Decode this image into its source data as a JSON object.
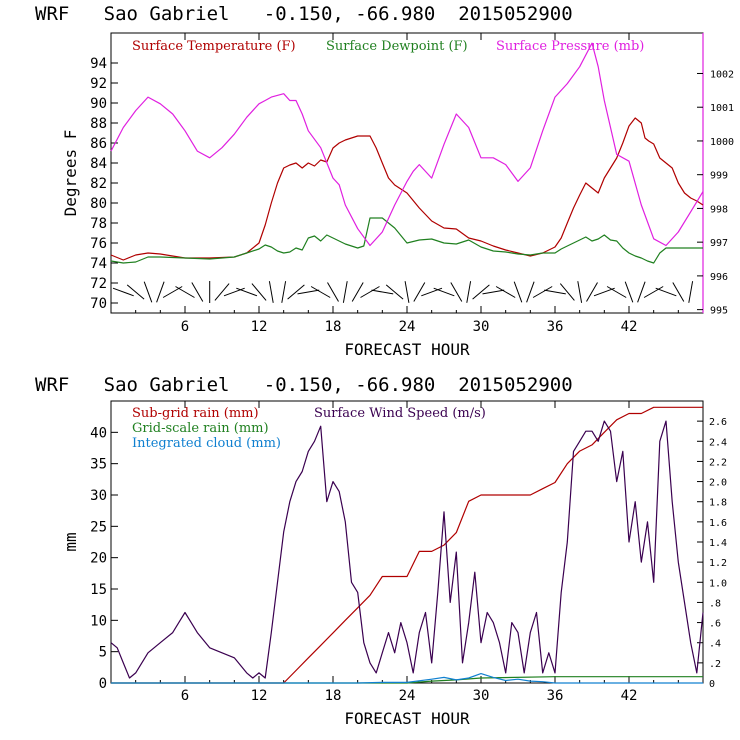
{
  "chart_data": [
    {
      "type": "line",
      "title": "WRF   Sao Gabriel   -0.150, -66.980  2015052900",
      "xlabel": "FORECAST HOUR",
      "ylabel": "Degrees F",
      "xlim": [
        0,
        48
      ],
      "ylim": [
        69,
        97
      ],
      "y2lim": [
        994.9,
        1003.2
      ],
      "x_ticks": [
        6,
        12,
        18,
        24,
        30,
        36,
        42
      ],
      "y_ticks": [
        70,
        72,
        74,
        76,
        78,
        80,
        82,
        84,
        86,
        88,
        90,
        92,
        94
      ],
      "y2_ticks": [
        995,
        996,
        997,
        998,
        999,
        1000,
        1001,
        1002
      ],
      "legend": [
        {
          "label": "Surface Temperature (F)",
          "color": "#b00000"
        },
        {
          "label": "Surface Dewpoint (F)",
          "color": "#208020"
        },
        {
          "label": "Surface Pressure (mb)",
          "color": "#e020e0"
        }
      ],
      "series": [
        {
          "name": "Surface Temperature (F)",
          "color": "#b00000",
          "axis": "left",
          "x": [
            0,
            1,
            2,
            3,
            4,
            6,
            8,
            10,
            11,
            12,
            12.5,
            13,
            13.5,
            14,
            14.5,
            15,
            15.5,
            16,
            16.5,
            17,
            17.5,
            18,
            18.5,
            19,
            20,
            21,
            21.5,
            22,
            22.5,
            23,
            24,
            25,
            26,
            27,
            28,
            29,
            30,
            31,
            32,
            33,
            34,
            35,
            36,
            36.5,
            37,
            37.5,
            38,
            38.5,
            39,
            39.5,
            40,
            40.5,
            41,
            41.5,
            42,
            42.5,
            43,
            43.3,
            43.6,
            44,
            44.5,
            45,
            45.5,
            46,
            46.5,
            47,
            47.5,
            48
          ],
          "y": [
            74.8,
            74.3,
            74.8,
            75,
            74.9,
            74.5,
            74.5,
            74.6,
            75,
            76,
            77.8,
            80,
            82,
            83.5,
            83.8,
            84,
            83.5,
            84,
            83.7,
            84.3,
            84.1,
            85.5,
            86,
            86.3,
            86.7,
            86.7,
            85.5,
            84,
            82.5,
            81.8,
            81,
            79.5,
            78.2,
            77.5,
            77.4,
            76.5,
            76.2,
            75.7,
            75.3,
            75,
            74.7,
            75,
            75.6,
            76.5,
            78,
            79.5,
            80.8,
            82,
            81.5,
            81,
            82.5,
            83.5,
            84.5,
            86,
            87.7,
            88.5,
            88,
            86.5,
            86.2,
            85.9,
            84.5,
            84,
            83.5,
            82,
            81,
            80.5,
            80.2,
            79.8
          ]
        },
        {
          "name": "Surface Dewpoint (F)",
          "color": "#208020",
          "axis": "left",
          "x": [
            0,
            1,
            2,
            3,
            4,
            6,
            8,
            10,
            11,
            12,
            12.5,
            13,
            13.5,
            14,
            14.5,
            15,
            15.5,
            16,
            16.5,
            17,
            17.5,
            18,
            19,
            20,
            20.5,
            21,
            22,
            23,
            24,
            25,
            26,
            27,
            28,
            29,
            30,
            31,
            32,
            33,
            34,
            35,
            36,
            36.5,
            37,
            37.5,
            38,
            38.5,
            39,
            39.5,
            40,
            40.5,
            41,
            41.5,
            42,
            42.5,
            43,
            43.5,
            44,
            44.5,
            45,
            45.5,
            46,
            47,
            48
          ],
          "y": [
            74.2,
            74,
            74.1,
            74.6,
            74.6,
            74.5,
            74.4,
            74.6,
            75,
            75.4,
            75.8,
            75.6,
            75.2,
            75,
            75.1,
            75.5,
            75.3,
            76.5,
            76.7,
            76.2,
            76.8,
            76.5,
            75.9,
            75.5,
            75.7,
            78.5,
            78.5,
            77.5,
            76,
            76.3,
            76.4,
            76,
            75.9,
            76.3,
            75.6,
            75.2,
            75.1,
            74.9,
            74.8,
            75,
            75,
            75.4,
            75.7,
            76,
            76.3,
            76.6,
            76.2,
            76.4,
            76.8,
            76.3,
            76.2,
            75.5,
            75,
            74.7,
            74.5,
            74.2,
            74,
            75,
            75.5,
            75.5,
            75.5,
            75.5,
            75.5
          ]
        },
        {
          "name": "Surface Pressure (mb)",
          "color": "#e020e0",
          "axis": "right",
          "x": [
            0,
            1,
            2,
            3,
            4,
            5,
            6,
            7,
            8,
            9,
            10,
            11,
            12,
            12.5,
            13,
            14,
            14.5,
            15,
            15.5,
            16,
            17,
            18,
            18.5,
            19,
            20,
            21,
            22,
            23,
            24,
            24.5,
            25,
            26,
            27,
            28,
            29,
            30,
            31,
            32,
            33,
            34,
            35,
            36,
            37,
            38,
            39,
            39.5,
            40,
            41,
            42,
            43,
            44,
            45,
            46,
            47,
            48
          ],
          "y": [
            999.7,
            1000.4,
            1000.9,
            1001.3,
            1001.1,
            1000.8,
            1000.3,
            999.7,
            999.5,
            999.8,
            1000.2,
            1000.7,
            1001.1,
            1001.2,
            1001.3,
            1001.4,
            1001.2,
            1001.2,
            1000.8,
            1000.3,
            999.8,
            998.9,
            998.7,
            998.1,
            997.4,
            996.9,
            997.3,
            998.1,
            998.8,
            999.1,
            999.3,
            998.9,
            999.9,
            1000.8,
            1000.4,
            999.5,
            999.5,
            999.3,
            998.8,
            999.2,
            1000.3,
            1001.3,
            1001.7,
            1002.2,
            1002.9,
            1002.2,
            1001.2,
            999.6,
            999.4,
            998.1,
            997.1,
            996.9,
            997.3,
            997.9,
            998.5
          ]
        }
      ],
      "wind_barb_row_y": 71.1,
      "wind_barb_hours": [
        1,
        2,
        3,
        4,
        5,
        6,
        7,
        8,
        9,
        10,
        11,
        12,
        13,
        14,
        15,
        16,
        17,
        18,
        19,
        20,
        21,
        22,
        23,
        24,
        25,
        26,
        27,
        28,
        29,
        30,
        31,
        32,
        33,
        34,
        35,
        36,
        37,
        38,
        39,
        40,
        41,
        42,
        43,
        44,
        45,
        46,
        47
      ],
      "wind_barb_directions_deg": [
        20,
        40,
        70,
        110,
        150,
        30,
        60,
        90,
        130,
        160,
        20,
        50,
        80,
        100,
        140,
        170,
        30,
        60,
        100,
        120,
        150,
        10,
        40,
        80,
        120,
        160,
        20,
        60,
        100,
        140,
        170,
        30,
        70,
        110,
        150,
        10,
        50,
        80,
        120,
        160,
        30,
        70,
        110,
        150,
        20,
        60,
        100
      ]
    },
    {
      "type": "line",
      "title": "WRF   Sao Gabriel   -0.150, -66.980  2015052900",
      "xlabel": "FORECAST HOUR",
      "ylabel": "mm",
      "xlim": [
        0,
        48
      ],
      "ylim": [
        0,
        45
      ],
      "y2lim": [
        0,
        2.8
      ],
      "x_ticks": [
        6,
        12,
        18,
        24,
        30,
        36,
        42
      ],
      "y_ticks": [
        0,
        5,
        10,
        15,
        20,
        25,
        30,
        35,
        40
      ],
      "y2_ticks": [
        0,
        0.2,
        0.4,
        0.6,
        0.8,
        1.0,
        1.2,
        1.4,
        1.6,
        1.8,
        2.0,
        2.2,
        2.4,
        2.6
      ],
      "y2_tick_labels": [
        "0",
        ".2",
        ".4",
        ".6",
        ".8",
        "1.0",
        "1.2",
        "1.4",
        "1.6",
        "1.8",
        "2.0",
        "2.2",
        "2.4",
        "2.6"
      ],
      "legend": [
        {
          "label": "Sub-grid rain (mm)",
          "color": "#b00000"
        },
        {
          "label": "Surface Wind Speed (m/s)",
          "color": "#3a0050"
        },
        {
          "label": "Grid-scale rain (mm)",
          "color": "#208020"
        },
        {
          "label": "Integrated cloud (mm)",
          "color": "#1080d0"
        }
      ],
      "series": [
        {
          "name": "Sub-grid rain (mm)",
          "color": "#b00000",
          "axis": "left",
          "x": [
            0,
            14,
            15,
            16,
            17,
            18,
            19,
            20,
            21,
            22,
            23,
            24,
            24.5,
            25,
            26,
            27,
            28,
            29,
            30,
            31,
            32,
            33,
            34,
            35,
            36,
            37,
            38,
            39,
            40,
            41,
            42,
            43,
            44,
            45,
            46,
            47,
            48
          ],
          "y": [
            0,
            0,
            2,
            4,
            6,
            8,
            10,
            12,
            14,
            17,
            17,
            17,
            19,
            21,
            21,
            22,
            24,
            29,
            30,
            30,
            30,
            30,
            30,
            31,
            32,
            35,
            37,
            38,
            40,
            42,
            43,
            43,
            44,
            44,
            44,
            44,
            44
          ]
        },
        {
          "name": "Surface Wind Speed (m/s)",
          "color": "#3a0050",
          "axis": "right",
          "x": [
            0,
            0.5,
            1,
            1.5,
            2,
            3,
            4,
            5,
            5.5,
            6,
            6.5,
            7,
            8,
            9,
            10,
            11,
            11.5,
            12,
            12.5,
            13,
            13.5,
            14,
            14.5,
            15,
            15.5,
            16,
            16.5,
            17,
            17.5,
            18,
            18.5,
            19,
            19.5,
            20,
            20.5,
            21,
            21.5,
            22,
            22.5,
            23,
            23.5,
            24,
            24.5,
            25,
            25.5,
            26,
            26.5,
            27,
            27.5,
            28,
            28.5,
            29,
            29.5,
            30,
            30.5,
            31,
            31.5,
            32,
            32.5,
            33,
            33.5,
            34,
            34.5,
            35,
            35.5,
            36,
            36.5,
            37,
            37.5,
            38,
            38.5,
            39,
            39.5,
            40,
            40.5,
            41,
            41.5,
            42,
            42.5,
            43,
            43.5,
            44,
            44.5,
            45,
            45.5,
            46,
            46.5,
            47,
            47.5,
            48
          ],
          "y": [
            0.4,
            0.35,
            0.2,
            0.05,
            0.1,
            0.3,
            0.4,
            0.5,
            0.6,
            0.7,
            0.6,
            0.5,
            0.35,
            0.3,
            0.25,
            0.1,
            0.05,
            0.1,
            0.05,
            0.5,
            1.0,
            1.5,
            1.8,
            2.0,
            2.1,
            2.3,
            2.4,
            2.55,
            1.8,
            2.0,
            1.9,
            1.6,
            1.0,
            0.9,
            0.4,
            0.2,
            0.1,
            0.3,
            0.5,
            0.3,
            0.6,
            0.4,
            0.1,
            0.5,
            0.7,
            0.2,
            0.9,
            1.7,
            0.8,
            1.3,
            0.2,
            0.6,
            1.1,
            0.4,
            0.7,
            0.6,
            0.4,
            0.1,
            0.6,
            0.5,
            0.1,
            0.5,
            0.7,
            0.1,
            0.3,
            0.1,
            0.9,
            1.4,
            2.3,
            2.4,
            2.5,
            2.5,
            2.4,
            2.6,
            2.5,
            2.0,
            2.3,
            1.4,
            1.8,
            1.2,
            1.6,
            1.0,
            2.4,
            2.6,
            1.8,
            1.2,
            0.8,
            0.4,
            0.1,
            0.7
          ]
        },
        {
          "name": "Grid-scale rain (mm)",
          "color": "#208020",
          "axis": "left",
          "x": [
            0,
            24,
            26,
            28,
            30,
            36,
            48
          ],
          "y": [
            0,
            0,
            0.3,
            0.5,
            0.8,
            1,
            1
          ]
        },
        {
          "name": "Integrated cloud (mm)",
          "color": "#1080d0",
          "axis": "left",
          "x": [
            0,
            20,
            22,
            24,
            26,
            27,
            28,
            29,
            30,
            31,
            32,
            33,
            34,
            35,
            36,
            48
          ],
          "y": [
            0,
            0,
            0.1,
            0.1,
            0.6,
            0.9,
            0.5,
            0.8,
            1.5,
            0.9,
            0.4,
            0.6,
            0.3,
            0.2,
            0,
            0
          ]
        }
      ]
    }
  ]
}
